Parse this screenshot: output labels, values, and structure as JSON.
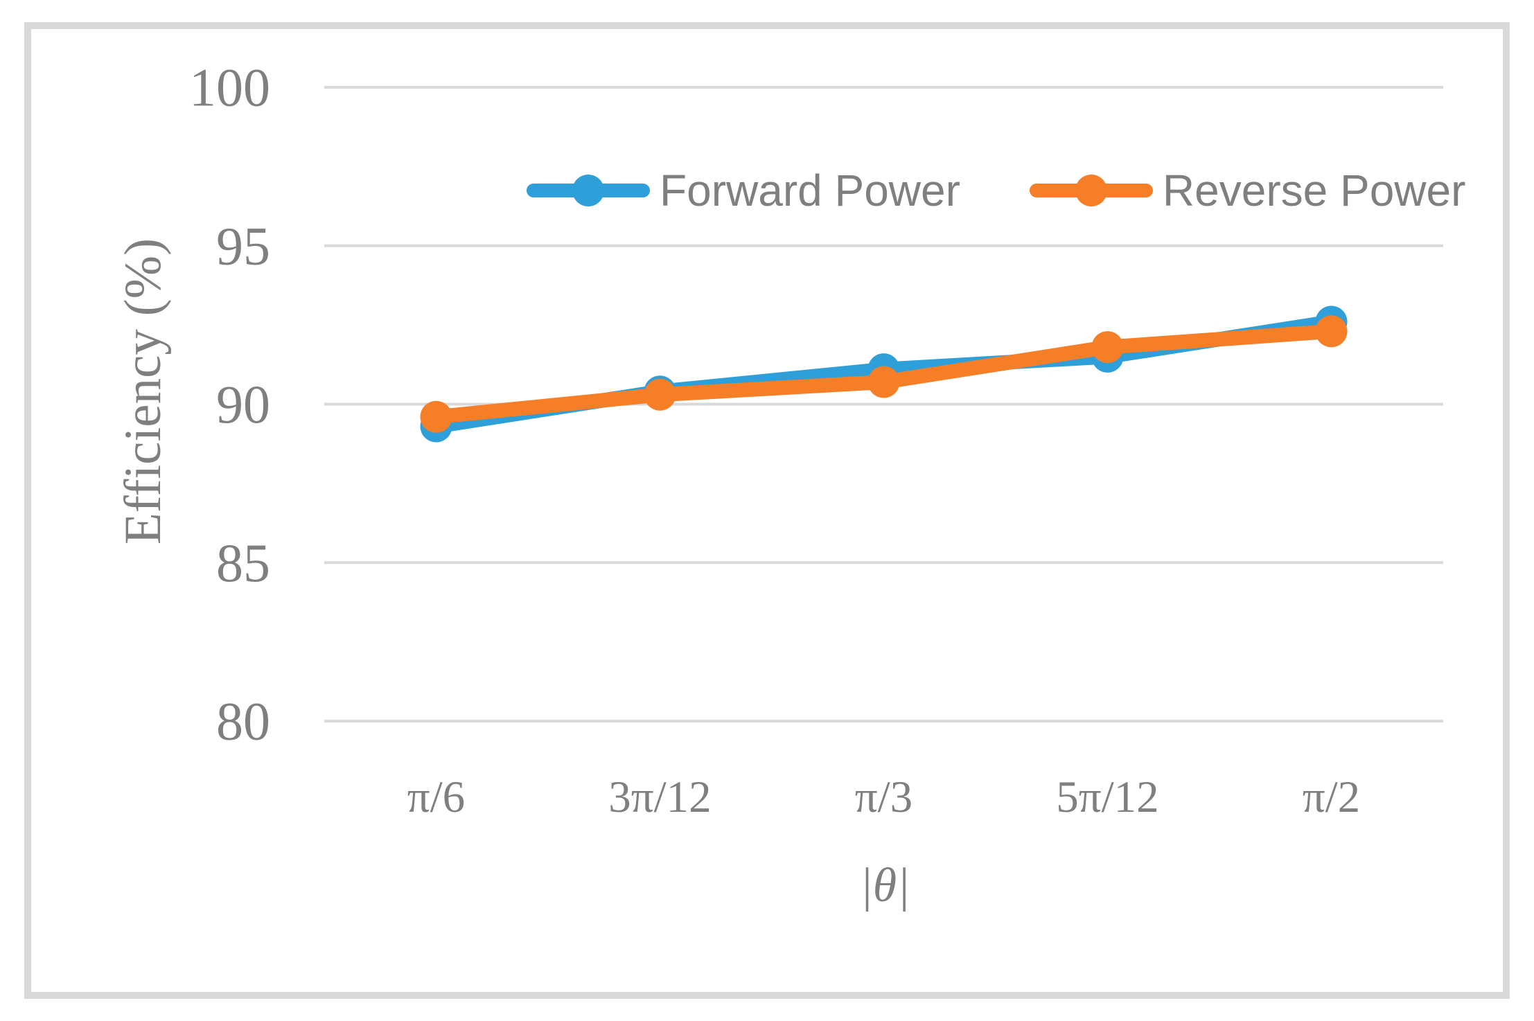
{
  "chart_data": {
    "type": "line",
    "title": "",
    "categories": [
      "π/6",
      "3π/12",
      "π/3",
      "5π/12",
      "π/2"
    ],
    "series": [
      {
        "name": "Forward Power",
        "color": "#2E9FD9",
        "values": [
          89.3,
          90.4,
          91.1,
          91.5,
          92.6
        ]
      },
      {
        "name": "Reverse Power",
        "color": "#F57E27",
        "values": [
          89.6,
          90.3,
          90.7,
          91.8,
          92.3
        ]
      }
    ],
    "xlabel": "|θ|",
    "ylabel": "Efficiency (%)",
    "ylim": [
      80,
      100
    ],
    "yticks": [
      80,
      85,
      90,
      95,
      100
    ],
    "grid": "horizontal",
    "legend_position": "top-inside",
    "marker": "circle"
  },
  "styles": {
    "grid_color": "#D9D9D9",
    "frame_color": "#D9D9D9",
    "text_color": "#7F7F7F"
  }
}
